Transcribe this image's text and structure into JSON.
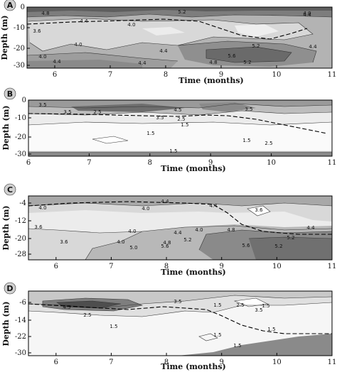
{
  "chart_data": [
    {
      "type": "contour",
      "panel": "A",
      "xlabel": "Time (months)",
      "ylabel": "Depth (m)",
      "xlim": [
        5.5,
        11
      ],
      "ylim": [
        -32,
        0
      ],
      "x_ticks": [
        "6",
        "7",
        "8",
        "9",
        "10",
        "11"
      ],
      "y_ticks": [
        "0",
        "-10",
        "-20",
        "-30"
      ],
      "contour_labels": [
        "4.8",
        "5.2",
        "4.0",
        "4.4",
        "4.0",
        "4.4",
        "3.6",
        "4.0",
        "4.4",
        "5.2",
        "5.6",
        "5.2",
        "4.8",
        "4.4",
        "4.0",
        "4.4",
        "4.4"
      ]
    },
    {
      "type": "contour",
      "panel": "B",
      "xlabel": "Time (months)",
      "ylabel": "Depth (m)",
      "xlim": [
        6,
        11
      ],
      "ylim": [
        -32,
        0
      ],
      "x_ticks": [
        "6",
        "7",
        "8",
        "9",
        "10",
        "11"
      ],
      "y_ticks": [
        "0",
        "-10",
        "-20",
        "-30"
      ],
      "contour_labels": [
        "3.5",
        "3.5",
        "2.5",
        "4.5",
        "3.5",
        "3.5",
        "2.5",
        "1.5",
        "1.5",
        "2.5",
        "1.5",
        "1.5"
      ]
    },
    {
      "type": "contour",
      "panel": "C",
      "xlabel": "Time (months)",
      "ylabel": "Depth (m)",
      "xlim": [
        5.5,
        11
      ],
      "ylim": [
        -31,
        -2
      ],
      "x_ticks": [
        "6",
        "7",
        "8",
        "9",
        "10",
        "11"
      ],
      "y_ticks": [
        "-4",
        "-12",
        "-20",
        "-28"
      ],
      "contour_labels": [
        "4.4",
        "4.0",
        "4.0",
        "4.4",
        "3.6",
        "3.6",
        "4.0",
        "4.0",
        "4.8",
        "4.4",
        "4.4",
        "5.2",
        "5.2",
        "3.6",
        "4.0",
        "4.8",
        "5.0",
        "5.6",
        "5.6",
        "5.2"
      ]
    },
    {
      "type": "contour",
      "panel": "D",
      "xlabel": "Time (months)",
      "ylabel": "Depth (m)",
      "xlim": [
        5.5,
        11
      ],
      "ylim": [
        -32,
        -3
      ],
      "x_ticks": [
        "6",
        "7",
        "8",
        "9",
        "10",
        "11"
      ],
      "y_ticks": [
        "-6",
        "-14",
        "-22",
        "-30"
      ],
      "contour_labels": [
        "3.5",
        "4.5",
        "2.5",
        "2.5",
        "3.5",
        "1.5",
        "1.5",
        "1.5",
        "1.5",
        "1.5",
        "1.5"
      ]
    }
  ]
}
